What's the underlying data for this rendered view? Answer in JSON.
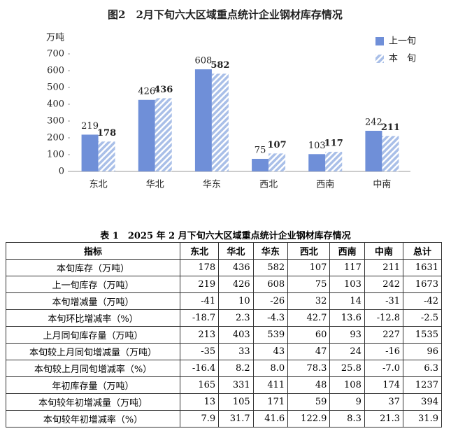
{
  "chart_data": {
    "type": "bar",
    "title": "图2　2月下旬六大区域重点统计企业钢材库存情况",
    "y_label": "万吨",
    "categories": [
      "东北",
      "华北",
      "华东",
      "西北",
      "西南",
      "中南"
    ],
    "series": [
      {
        "name": "上一旬",
        "color": "#6f8fd8",
        "values": [
          219,
          426,
          608,
          75,
          103,
          242
        ]
      },
      {
        "name": "本　旬",
        "color": "#a9bfe8",
        "pattern": "hatch",
        "values": [
          178,
          436,
          582,
          107,
          117,
          211
        ]
      }
    ],
    "ylim": [
      0,
      700
    ],
    "yticks": [
      0,
      100,
      200,
      300,
      400,
      500,
      600,
      700
    ],
    "grid": false,
    "legend": "top-right",
    "data_labels": true
  },
  "table": {
    "title": "表 1　2025 年 2 月下旬六大区域重点统计企业钢材库存情况",
    "header": [
      "指标",
      "东北",
      "华北",
      "华东",
      "西北",
      "西南",
      "中南",
      "总计"
    ],
    "rows": [
      [
        "本旬库存（万吨）",
        "178",
        "436",
        "582",
        "107",
        "117",
        "211",
        "1631"
      ],
      [
        "上一旬库存（万吨）",
        "219",
        "426",
        "608",
        "75",
        "103",
        "242",
        "1673"
      ],
      [
        "本旬增减量（万吨）",
        "-41",
        "10",
        "-26",
        "32",
        "14",
        "-31",
        "-42"
      ],
      [
        "本旬环比增减率（%）",
        "-18.7",
        "2.3",
        "-4.3",
        "42.7",
        "13.6",
        "-12.8",
        "-2.5"
      ],
      [
        "上月同旬库存量（万吨）",
        "213",
        "403",
        "539",
        "60",
        "93",
        "227",
        "1535"
      ],
      [
        "本旬较上月同旬增减量（万吨）",
        "-35",
        "33",
        "43",
        "47",
        "24",
        "-16",
        "96"
      ],
      [
        "本旬较上月同旬增减率（%）",
        "-16.4",
        "8.2",
        "8.0",
        "78.3",
        "25.8",
        "-7.0",
        "6.3"
      ],
      [
        "年初库存量（万吨）",
        "165",
        "331",
        "411",
        "48",
        "108",
        "174",
        "1237"
      ],
      [
        "本旬较年初增减量（万吨）",
        "13",
        "105",
        "171",
        "59",
        "9",
        "37",
        "394"
      ],
      [
        "本旬较年初增减率（%）",
        "7.9",
        "31.7",
        "41.6",
        "122.9",
        "8.3",
        "21.3",
        "31.9"
      ]
    ]
  }
}
